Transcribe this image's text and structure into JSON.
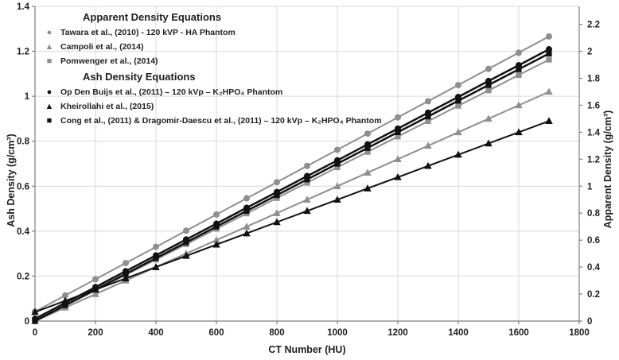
{
  "chart_data": {
    "type": "line",
    "title": "",
    "x_axis": {
      "label": "CT Number (HU)",
      "ticks": [
        "0",
        "200",
        "400",
        "600",
        "800",
        "1000",
        "1200",
        "1400",
        "1600",
        "1800"
      ],
      "lim": [
        0,
        1800
      ]
    },
    "left_axis": {
      "label": "Ash Density (g/cm³)",
      "ticks": [
        "0",
        "0.2",
        "0.4",
        "0.6",
        "0.8",
        "1",
        "1.2",
        "1.4"
      ],
      "lim": [
        0,
        1.4
      ]
    },
    "right_axis": {
      "label": "Apparent Density (g/cm³)",
      "ticks": [
        "0",
        "0.2",
        "0.4",
        "0.6",
        "0.8",
        "1",
        "1.2",
        "1.4",
        "1.6",
        "1.8",
        "2",
        "2.2"
      ],
      "lim": [
        0,
        2.3333
      ]
    },
    "grid": true,
    "x": [
      0,
      100,
      200,
      300,
      400,
      500,
      600,
      700,
      800,
      900,
      1000,
      1100,
      1200,
      1300,
      1400,
      1500,
      1600,
      1700
    ],
    "series": [
      {
        "id": "pomwenger",
        "name": "Pomwenger et al., (2014)",
        "axis": "right",
        "marker": "square",
        "color": "#8f8f8f",
        "line_width": 2,
        "values": [
          0,
          0.114,
          0.228,
          0.342,
          0.456,
          0.57,
          0.684,
          0.798,
          0.912,
          1.026,
          1.14,
          1.254,
          1.368,
          1.482,
          1.596,
          1.71,
          1.824,
          1.938
        ]
      },
      {
        "id": "campoli",
        "name": "Campoli et al., (2014)",
        "axis": "right",
        "marker": "triangle",
        "color": "#8f8f8f",
        "line_width": 2,
        "values": [
          0,
          0.1,
          0.2,
          0.3,
          0.4,
          0.5,
          0.6,
          0.7,
          0.8,
          0.9,
          1.0,
          1.1,
          1.2,
          1.3,
          1.4,
          1.5,
          1.6,
          1.7
        ]
      },
      {
        "id": "tawara",
        "name": "Tawara et al., (2010) - 120 kVP - HA Phantom",
        "axis": "right",
        "marker": "circle",
        "color": "#8f8f8f",
        "line_width": 2,
        "values": [
          0.07,
          0.19,
          0.31,
          0.43,
          0.55,
          0.67,
          0.79,
          0.91,
          1.03,
          1.15,
          1.27,
          1.39,
          1.51,
          1.63,
          1.75,
          1.87,
          1.99,
          2.11
        ]
      },
      {
        "id": "cong",
        "name": "Cong et al., (2011) & Dragomir-Daescu et al., (2011) – 120 kVp – K₂HPO₄ Phantom",
        "axis": "left",
        "marker": "square",
        "color": "#111111",
        "line_width": 2.5,
        "values": [
          0,
          0.07,
          0.14,
          0.21,
          0.28,
          0.35,
          0.42,
          0.49,
          0.56,
          0.63,
          0.7,
          0.77,
          0.84,
          0.91,
          0.98,
          1.05,
          1.12,
          1.19
        ]
      },
      {
        "id": "opdenbuijs",
        "name": "Op Den Buijs et al., (2011) – 120 kVp – K₂HPO₄ Phantom",
        "axis": "left",
        "marker": "circle",
        "color": "#111111",
        "line_width": 2.5,
        "values": [
          0.01,
          0.081,
          0.151,
          0.222,
          0.292,
          0.363,
          0.433,
          0.504,
          0.574,
          0.645,
          0.715,
          0.786,
          0.856,
          0.927,
          0.997,
          1.068,
          1.138,
          1.209
        ]
      },
      {
        "id": "kheirollahi",
        "name": "Kheirollahi et al., (2015)",
        "axis": "left",
        "marker": "triangle",
        "color": "#111111",
        "line_width": 2,
        "values": [
          0.04,
          0.09,
          0.14,
          0.19,
          0.24,
          0.29,
          0.34,
          0.39,
          0.44,
          0.49,
          0.54,
          0.59,
          0.64,
          0.69,
          0.74,
          0.79,
          0.84,
          0.89
        ]
      }
    ],
    "legend": {
      "position": "inside-top-left",
      "groups": [
        {
          "header": "Apparent Density Equations",
          "item_ids": [
            "tawara",
            "campoli",
            "pomwenger"
          ]
        },
        {
          "header": "Ash Density Equations",
          "item_ids": [
            "opdenbuijs",
            "kheirollahi",
            "cong"
          ]
        }
      ]
    },
    "colors": {
      "gray_series": "#8f8f8f",
      "black_series": "#111111",
      "grid": "#d9d9d9",
      "axis_line": "#7f7f7f",
      "text": "#1f1f1f",
      "background": "#ffffff"
    }
  }
}
